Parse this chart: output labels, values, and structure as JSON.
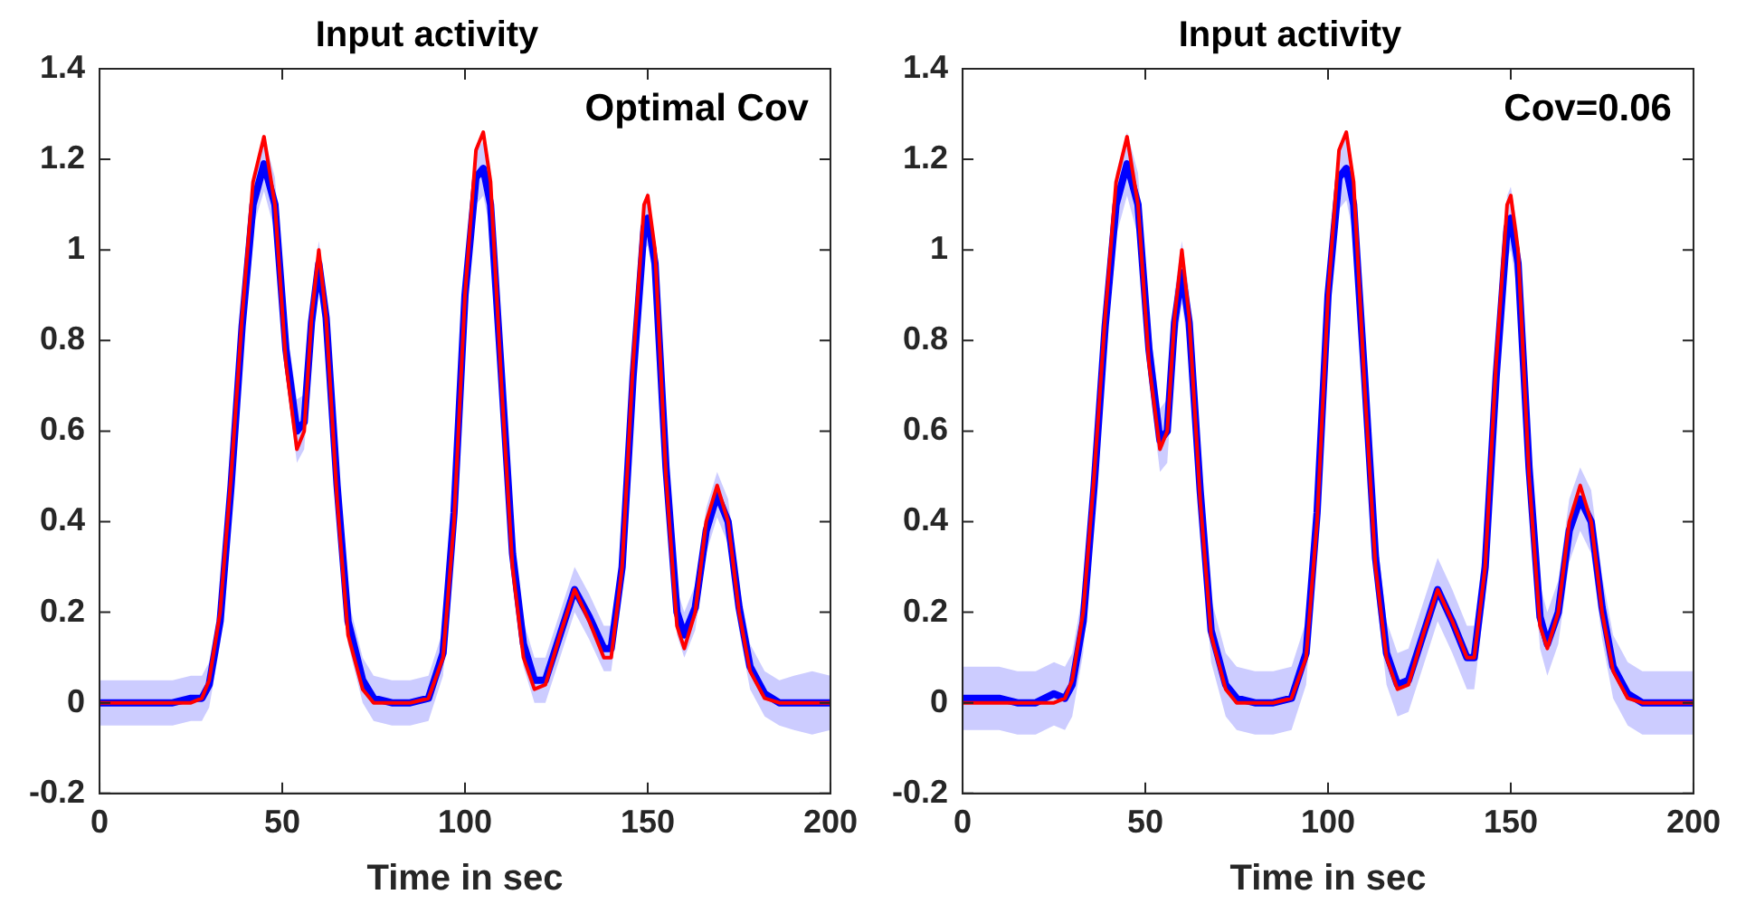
{
  "chart_data": [
    {
      "type": "line",
      "title": "Input activity",
      "xlabel": "Time in sec",
      "annotations": [
        "Optimal Cov"
      ],
      "xlim": [
        0,
        200
      ],
      "xticks": [
        0,
        50,
        100,
        150,
        200
      ],
      "ylim": [
        -0.2,
        1.4
      ],
      "yticks": [
        -0.2,
        0,
        0.2,
        0.4,
        0.6,
        0.8,
        1,
        1.2,
        1.4
      ],
      "grid": false,
      "marker": "none",
      "line_style": "solid",
      "x": [
        0,
        5,
        10,
        15,
        20,
        25,
        28,
        30,
        33,
        36,
        39,
        42,
        45,
        48,
        51,
        54,
        56,
        58,
        60,
        62,
        65,
        68,
        72,
        75,
        80,
        85,
        90,
        94,
        97,
        100,
        103,
        105,
        107,
        110,
        113,
        116,
        119,
        122,
        126,
        130,
        134,
        138,
        140,
        143,
        146,
        149,
        150,
        152,
        155,
        158,
        160,
        163,
        166,
        169,
        172,
        175,
        178,
        182,
        186,
        190,
        195,
        200
      ],
      "series": [
        {
          "color": "#0000ff",
          "values": [
            0,
            0,
            0,
            0,
            0,
            0.01,
            0.01,
            0.04,
            0.18,
            0.48,
            0.83,
            1.1,
            1.19,
            1.1,
            0.78,
            0.6,
            0.62,
            0.84,
            0.97,
            0.85,
            0.48,
            0.18,
            0.05,
            0.01,
            0,
            0,
            0.01,
            0.11,
            0.42,
            0.9,
            1.16,
            1.18,
            1.1,
            0.72,
            0.33,
            0.13,
            0.05,
            0.05,
            0.15,
            0.25,
            0.19,
            0.12,
            0.12,
            0.3,
            0.72,
            1.05,
            1.07,
            0.97,
            0.52,
            0.2,
            0.15,
            0.21,
            0.38,
            0.46,
            0.4,
            0.21,
            0.08,
            0.02,
            0,
            0,
            0,
            0
          ],
          "upper": [
            0.05,
            0.05,
            0.05,
            0.05,
            0.05,
            0.06,
            0.06,
            0.09,
            0.23,
            0.53,
            0.88,
            1.15,
            1.25,
            1.16,
            0.84,
            0.67,
            0.68,
            0.9,
            1.02,
            0.9,
            0.53,
            0.23,
            0.1,
            0.06,
            0.05,
            0.05,
            0.06,
            0.16,
            0.47,
            0.95,
            1.22,
            1.24,
            1.16,
            0.77,
            0.38,
            0.18,
            0.1,
            0.1,
            0.2,
            0.3,
            0.24,
            0.17,
            0.17,
            0.35,
            0.77,
            1.1,
            1.13,
            1.02,
            0.57,
            0.25,
            0.2,
            0.26,
            0.43,
            0.51,
            0.45,
            0.26,
            0.13,
            0.07,
            0.05,
            0.06,
            0.07,
            0.06
          ],
          "lower": [
            -0.05,
            -0.05,
            -0.05,
            -0.05,
            -0.05,
            -0.04,
            -0.04,
            -0.01,
            0.13,
            0.43,
            0.78,
            1.05,
            1.13,
            1.04,
            0.72,
            0.53,
            0.56,
            0.78,
            0.92,
            0.8,
            0.43,
            0.13,
            0,
            -0.04,
            -0.05,
            -0.05,
            -0.04,
            0.06,
            0.37,
            0.85,
            1.1,
            1.12,
            1.04,
            0.67,
            0.28,
            0.08,
            0,
            0,
            0.1,
            0.2,
            0.14,
            0.07,
            0.07,
            0.25,
            0.67,
            1,
            1.01,
            0.92,
            0.47,
            0.15,
            0.1,
            0.16,
            0.33,
            0.41,
            0.35,
            0.16,
            0.03,
            -0.03,
            -0.05,
            -0.06,
            -0.07,
            -0.06
          ]
        },
        {
          "color": "#ff0000",
          "values": [
            0,
            0,
            0,
            0,
            0,
            0,
            0.01,
            0.05,
            0.2,
            0.5,
            0.85,
            1.15,
            1.25,
            1.1,
            0.75,
            0.56,
            0.6,
            0.85,
            1,
            0.85,
            0.45,
            0.15,
            0.03,
            0,
            0,
            0,
            0.01,
            0.1,
            0.4,
            0.9,
            1.22,
            1.26,
            1.15,
            0.7,
            0.3,
            0.1,
            0.03,
            0.04,
            0.15,
            0.25,
            0.18,
            0.1,
            0.1,
            0.3,
            0.75,
            1.1,
            1.12,
            1,
            0.5,
            0.17,
            0.12,
            0.2,
            0.4,
            0.48,
            0.4,
            0.2,
            0.07,
            0.01,
            0,
            0,
            0,
            0
          ]
        }
      ]
    },
    {
      "type": "line",
      "title": "Input activity",
      "xlabel": "Time in sec",
      "annotations": [
        "Cov=0.06"
      ],
      "xlim": [
        0,
        200
      ],
      "xticks": [
        0,
        50,
        100,
        150,
        200
      ],
      "ylim": [
        -0.2,
        1.4
      ],
      "yticks": [
        -0.2,
        0,
        0.2,
        0.4,
        0.6,
        0.8,
        1,
        1.2,
        1.4
      ],
      "grid": false,
      "marker": "none",
      "line_style": "solid",
      "x": [
        0,
        5,
        10,
        15,
        20,
        25,
        28,
        30,
        33,
        36,
        39,
        42,
        45,
        48,
        51,
        54,
        56,
        58,
        60,
        62,
        65,
        68,
        72,
        75,
        80,
        85,
        90,
        94,
        97,
        100,
        103,
        105,
        107,
        110,
        113,
        116,
        119,
        122,
        126,
        130,
        134,
        138,
        140,
        143,
        146,
        149,
        150,
        152,
        155,
        158,
        160,
        163,
        166,
        169,
        172,
        175,
        178,
        182,
        186,
        190,
        195,
        200
      ],
      "series": [
        {
          "color": "#0000ff",
          "values": [
            0.01,
            0.01,
            0.01,
            0,
            0,
            0.02,
            0.01,
            0.04,
            0.18,
            0.48,
            0.83,
            1.1,
            1.19,
            1.1,
            0.78,
            0.58,
            0.6,
            0.84,
            0.95,
            0.84,
            0.47,
            0.16,
            0.04,
            0.01,
            0,
            0,
            0.01,
            0.11,
            0.42,
            0.9,
            1.16,
            1.18,
            1.1,
            0.72,
            0.32,
            0.11,
            0.04,
            0.05,
            0.15,
            0.25,
            0.18,
            0.1,
            0.1,
            0.3,
            0.72,
            1.05,
            1.07,
            0.97,
            0.52,
            0.19,
            0.13,
            0.2,
            0.38,
            0.45,
            0.4,
            0.21,
            0.08,
            0.02,
            0,
            0,
            0,
            0
          ],
          "upper": [
            0.08,
            0.08,
            0.08,
            0.07,
            0.07,
            0.09,
            0.08,
            0.11,
            0.25,
            0.55,
            0.9,
            1.17,
            1.26,
            1.17,
            0.85,
            0.65,
            0.67,
            0.91,
            1.02,
            0.91,
            0.54,
            0.23,
            0.11,
            0.08,
            0.07,
            0.07,
            0.08,
            0.18,
            0.49,
            0.97,
            1.23,
            1.25,
            1.17,
            0.79,
            0.39,
            0.18,
            0.11,
            0.12,
            0.22,
            0.32,
            0.25,
            0.17,
            0.17,
            0.37,
            0.79,
            1.12,
            1.14,
            1.04,
            0.59,
            0.26,
            0.2,
            0.27,
            0.45,
            0.52,
            0.47,
            0.28,
            0.15,
            0.09,
            0.07,
            0.07,
            0.07,
            0.07
          ],
          "lower": [
            -0.06,
            -0.06,
            -0.06,
            -0.07,
            -0.07,
            -0.05,
            -0.06,
            -0.03,
            0.11,
            0.41,
            0.76,
            1.03,
            1.12,
            1.03,
            0.71,
            0.51,
            0.53,
            0.77,
            0.88,
            0.77,
            0.4,
            0.09,
            -0.03,
            -0.06,
            -0.07,
            -0.07,
            -0.06,
            0.04,
            0.35,
            0.83,
            1.09,
            1.11,
            1.03,
            0.65,
            0.25,
            0.04,
            -0.03,
            -0.02,
            0.08,
            0.18,
            0.11,
            0.03,
            0.03,
            0.23,
            0.65,
            0.98,
            1,
            0.9,
            0.45,
            0.12,
            0.06,
            0.13,
            0.31,
            0.38,
            0.33,
            0.14,
            0.01,
            -0.05,
            -0.07,
            -0.07,
            -0.07,
            -0.07
          ]
        },
        {
          "color": "#ff0000",
          "values": [
            0,
            0,
            0,
            0,
            0,
            0,
            0.01,
            0.05,
            0.2,
            0.5,
            0.85,
            1.15,
            1.25,
            1.1,
            0.75,
            0.56,
            0.6,
            0.85,
            1,
            0.85,
            0.45,
            0.15,
            0.03,
            0,
            0,
            0,
            0.01,
            0.1,
            0.4,
            0.9,
            1.22,
            1.26,
            1.15,
            0.7,
            0.3,
            0.1,
            0.03,
            0.04,
            0.15,
            0.25,
            0.18,
            0.1,
            0.1,
            0.3,
            0.75,
            1.1,
            1.12,
            1,
            0.5,
            0.17,
            0.12,
            0.2,
            0.4,
            0.48,
            0.4,
            0.2,
            0.07,
            0.01,
            0,
            0,
            0,
            0
          ]
        }
      ]
    }
  ]
}
